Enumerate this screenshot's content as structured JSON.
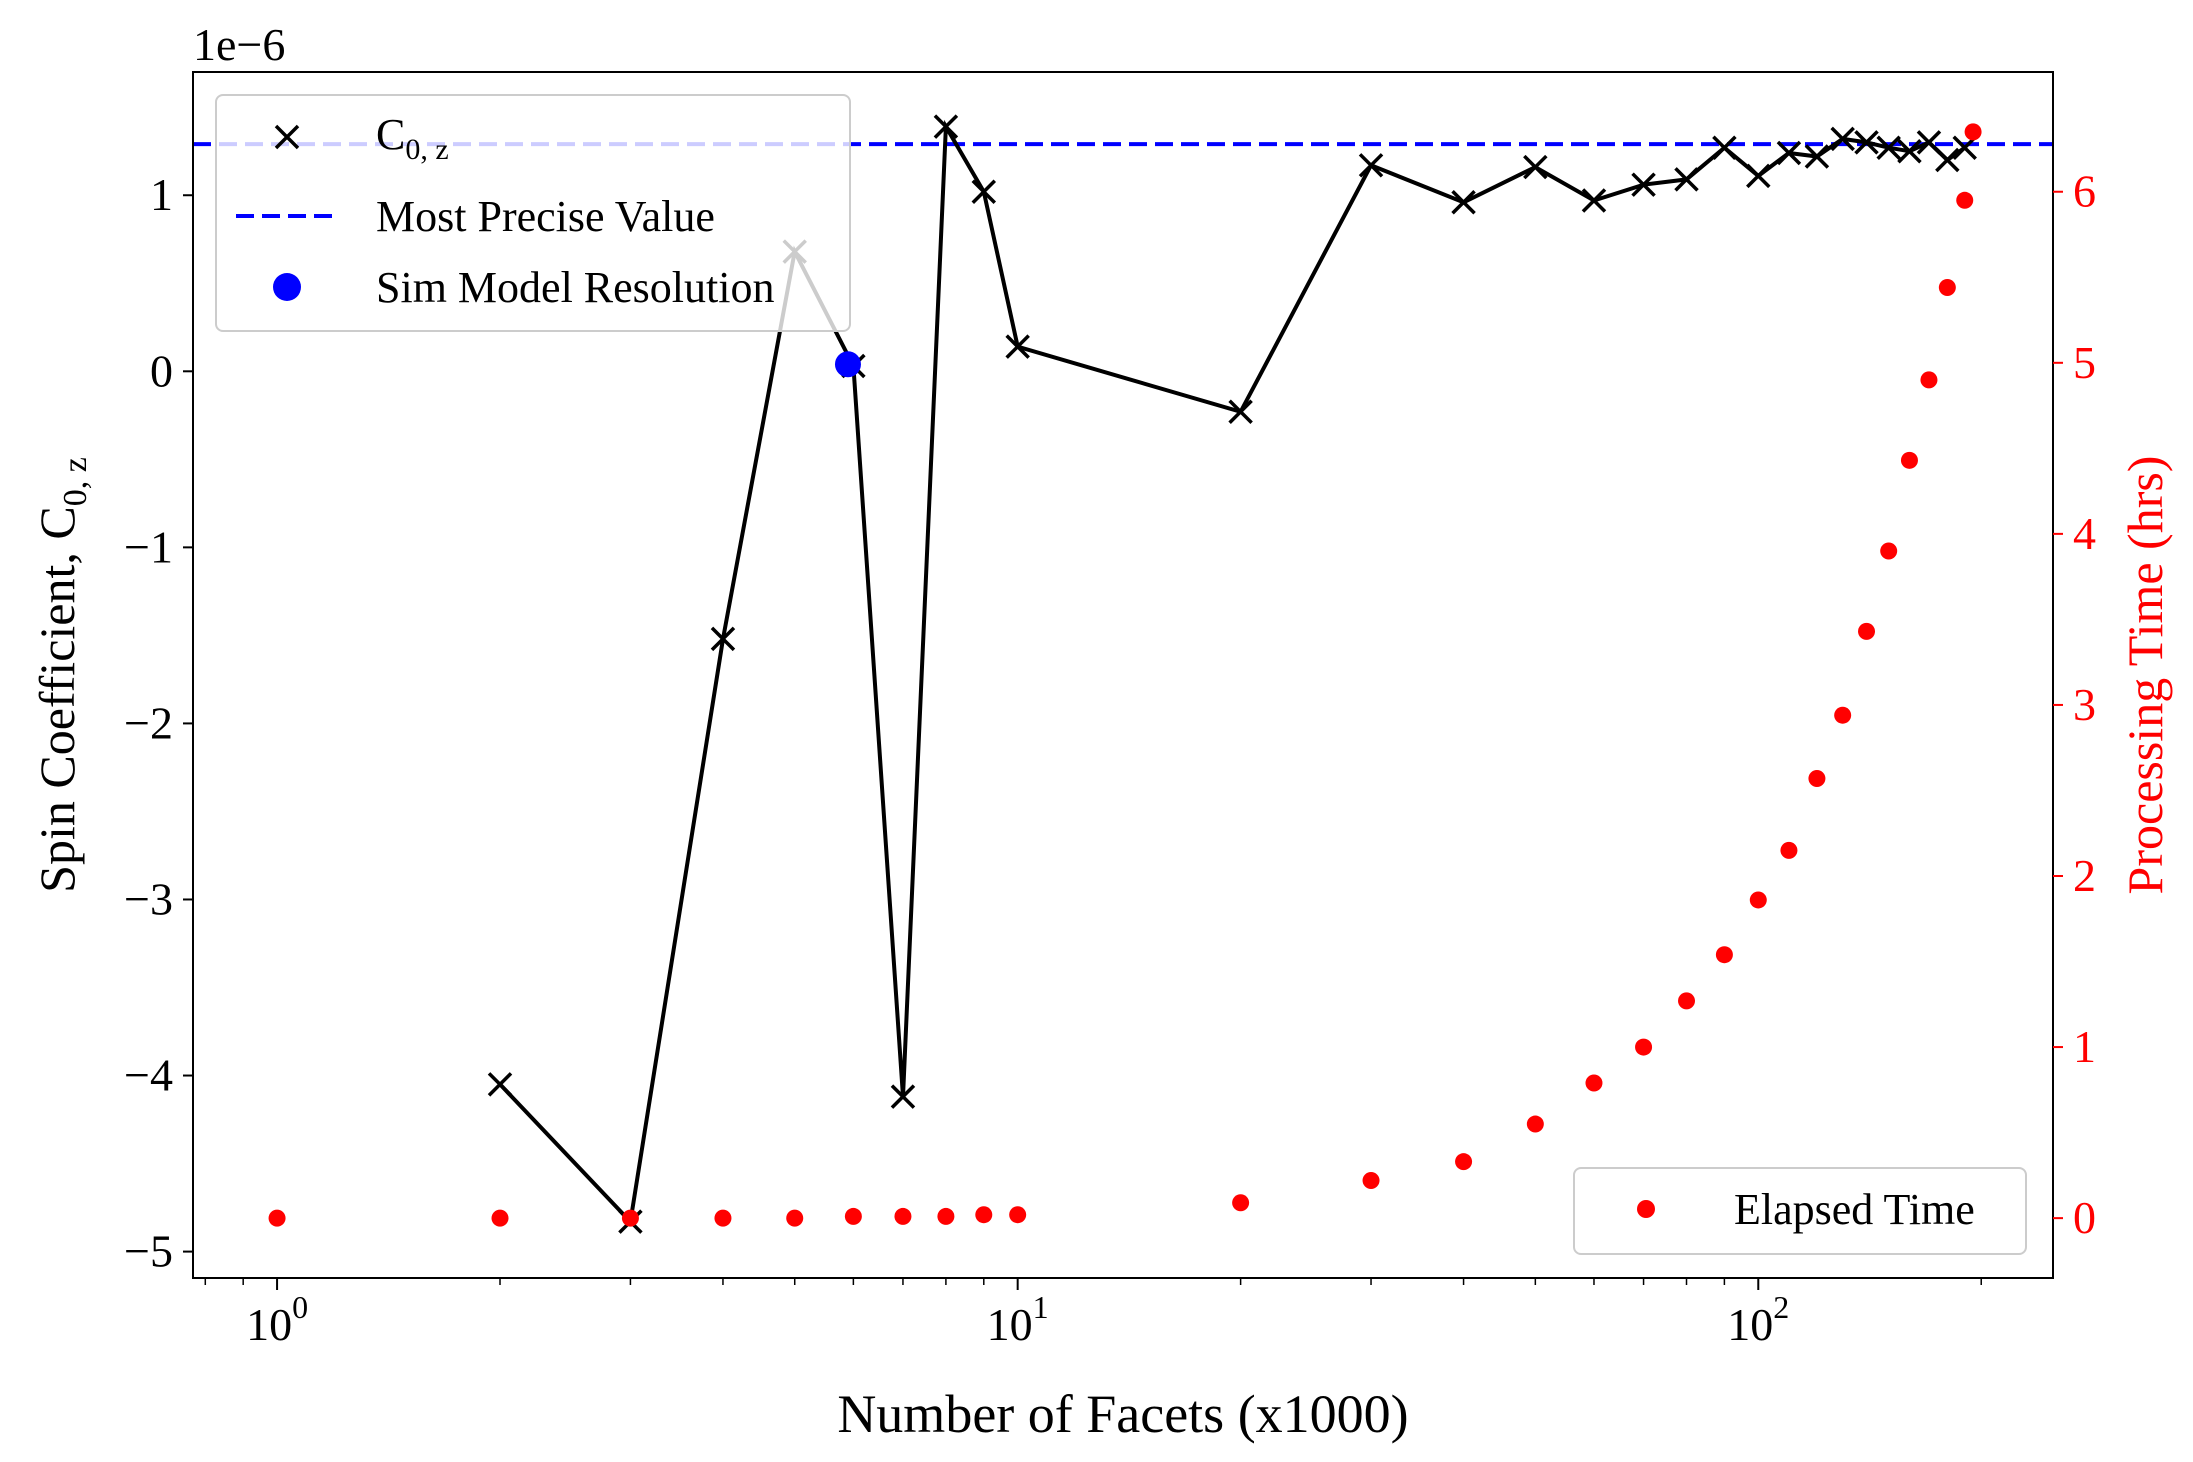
{
  "chart_data": {
    "type": "scatter",
    "xlabel": "Number of Facets (x1000)",
    "xscale": "log",
    "xlim": [
      0.77,
      250
    ],
    "x_ticks": [
      {
        "value": 1,
        "base": "10",
        "exp": "0"
      },
      {
        "value": 10,
        "base": "10",
        "exp": "1"
      },
      {
        "value": 100,
        "base": "10",
        "exp": "2"
      }
    ],
    "left_axis": {
      "label_main": "Spin Coefficient, C",
      "label_sub": "0, z",
      "offset_text": "1e−6",
      "ylim": [
        -5.15,
        1.7
      ],
      "tick_values": [
        -5,
        -4,
        -3,
        -2,
        -1,
        0,
        1
      ],
      "tick_labels": [
        "−5",
        "−4",
        "−3",
        "−2",
        "−1",
        "0",
        "1"
      ]
    },
    "right_axis": {
      "label": "Processing Time (hrs)",
      "color": "#ff0000",
      "ylim": [
        -0.35,
        6.7
      ],
      "tick_values": [
        0,
        1,
        2,
        3,
        4,
        5,
        6
      ],
      "tick_labels": [
        "0",
        "1",
        "2",
        "3",
        "4",
        "5",
        "6"
      ]
    },
    "series": [
      {
        "name": "C",
        "name_sub": "0, z",
        "kind": "line-x-marker",
        "axis": "left",
        "color": "#000000",
        "x": [
          2,
          3,
          4,
          5,
          6,
          7,
          8,
          9,
          10,
          20,
          30,
          40,
          50,
          60,
          70,
          80,
          90,
          100,
          110,
          120,
          130,
          140,
          150,
          160,
          170,
          180,
          190
        ],
        "y": [
          -4.05,
          -4.83,
          -1.52,
          0.68,
          0.03,
          -4.12,
          1.39,
          1.02,
          0.14,
          -0.23,
          1.17,
          0.96,
          1.16,
          0.97,
          1.06,
          1.09,
          1.27,
          1.11,
          1.24,
          1.22,
          1.32,
          1.3,
          1.27,
          1.25,
          1.3,
          1.2,
          1.27
        ]
      },
      {
        "name": "Most Precise Value",
        "kind": "hline-dashed",
        "axis": "left",
        "color": "#0000ff",
        "y": 1.29
      },
      {
        "name": "Sim Model Resolution",
        "kind": "point",
        "axis": "left",
        "color": "#0000ff",
        "x": 5.9,
        "y": 0.04
      },
      {
        "name": "Elapsed Time",
        "kind": "scatter",
        "axis": "right",
        "color": "#ff0000",
        "x": [
          1,
          2,
          3,
          4,
          5,
          6,
          7,
          8,
          9,
          10,
          20,
          30,
          40,
          50,
          60,
          70,
          80,
          90,
          100,
          110,
          120,
          130,
          140,
          150,
          160,
          170,
          180,
          190
        ],
        "y": [
          0.0,
          0.0,
          0.0,
          0.0,
          0.0,
          0.01,
          0.01,
          0.01,
          0.02,
          0.02,
          0.09,
          0.22,
          0.33,
          0.55,
          0.79,
          1.0,
          1.27,
          1.54,
          1.86,
          2.15,
          2.57,
          2.94,
          3.43,
          3.9,
          4.43,
          4.9,
          5.44,
          5.95
        ]
      }
    ],
    "extra_point": {
      "x": 195,
      "y": 6.35,
      "axis": "right",
      "color": "#ff0000"
    },
    "legend_left_placement": "upper-left",
    "legend_right_placement": "lower-right",
    "grid": false
  }
}
